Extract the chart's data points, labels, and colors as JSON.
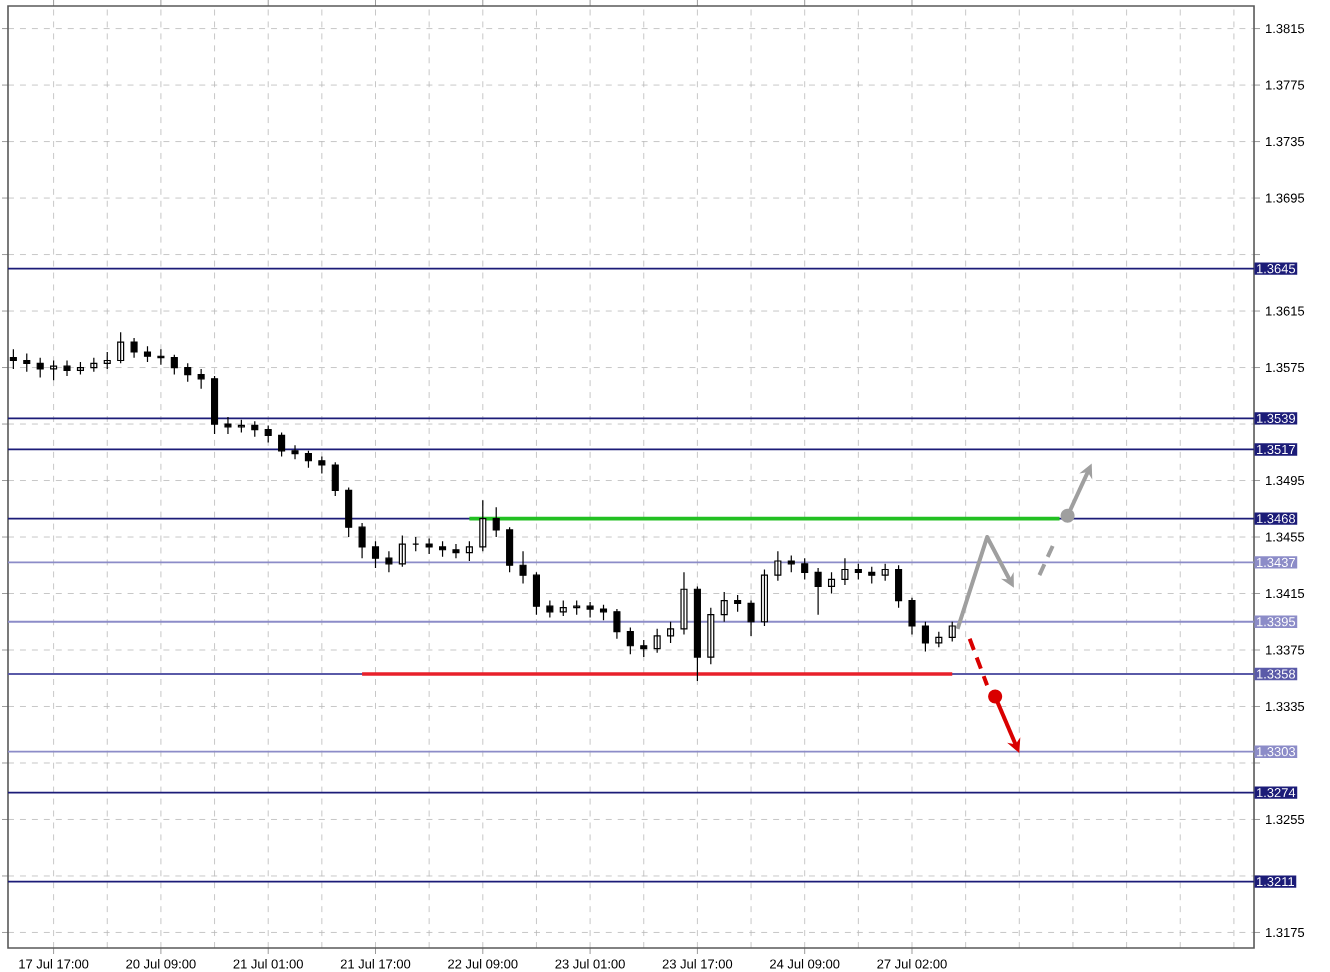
{
  "chart_data": {
    "type": "candlestick",
    "categories": [
      null,
      null,
      null,
      "17 Jul 17:00",
      null,
      null,
      null,
      null,
      null,
      null,
      null,
      "20 Jul 09:00",
      null,
      null,
      null,
      null,
      null,
      null,
      null,
      "21 Jul 01:00",
      null,
      null,
      null,
      null,
      null,
      null,
      null,
      "21 Jul 17:00",
      null,
      null,
      null,
      null,
      null,
      null,
      null,
      "22 Jul 09:00",
      null,
      null,
      null,
      null,
      null,
      null,
      null,
      "23 Jul 01:00",
      null,
      null,
      null,
      null,
      null,
      null,
      null,
      "23 Jul 17:00",
      null,
      null,
      null,
      null,
      null,
      null,
      null,
      "24 Jul 09:00",
      null,
      null,
      null,
      null,
      null,
      null,
      null,
      "27 Jul 02:00",
      null,
      null,
      null,
      null,
      null,
      null,
      null,
      null,
      null,
      null,
      null,
      null,
      null,
      null,
      null,
      null,
      null,
      null,
      null,
      null,
      null,
      null,
      null,
      null,
      null
    ],
    "ohlc": [
      [
        1.3582,
        1.3588,
        1.3574,
        1.358
      ],
      [
        1.358,
        1.3585,
        1.3572,
        1.3578
      ],
      [
        1.3578,
        1.3582,
        1.3568,
        1.3574
      ],
      [
        1.3574,
        1.358,
        1.3566,
        1.3576
      ],
      [
        1.3576,
        1.358,
        1.3569,
        1.3573
      ],
      [
        1.3573,
        1.3579,
        1.357,
        1.3575
      ],
      [
        1.3575,
        1.3582,
        1.3572,
        1.3578
      ],
      [
        1.3578,
        1.3586,
        1.3574,
        1.358
      ],
      [
        1.358,
        1.36,
        1.3578,
        1.3593
      ],
      [
        1.3593,
        1.3596,
        1.3582,
        1.3586
      ],
      [
        1.3586,
        1.359,
        1.3579,
        1.3583
      ],
      [
        1.3583,
        1.3588,
        1.3577,
        1.3582
      ],
      [
        1.3582,
        1.3584,
        1.357,
        1.3575
      ],
      [
        1.3575,
        1.3578,
        1.3565,
        1.357
      ],
      [
        1.357,
        1.3574,
        1.356,
        1.3567
      ],
      [
        1.3567,
        1.3569,
        1.3528,
        1.3535
      ],
      [
        1.3535,
        1.354,
        1.3528,
        1.3533
      ],
      [
        1.3533,
        1.3538,
        1.3529,
        1.3534
      ],
      [
        1.3534,
        1.3537,
        1.3526,
        1.3531
      ],
      [
        1.3531,
        1.3534,
        1.3522,
        1.3527
      ],
      [
        1.3527,
        1.3529,
        1.3512,
        1.3516
      ],
      [
        1.3516,
        1.352,
        1.351,
        1.3514
      ],
      [
        1.3514,
        1.3516,
        1.3504,
        1.3509
      ],
      [
        1.3509,
        1.3512,
        1.35,
        1.3506
      ],
      [
        1.3506,
        1.3508,
        1.3484,
        1.3488
      ],
      [
        1.3488,
        1.349,
        1.3455,
        1.3462
      ],
      [
        1.3462,
        1.3465,
        1.344,
        1.3448
      ],
      [
        1.3448,
        1.3452,
        1.3433,
        1.344
      ],
      [
        1.344,
        1.3445,
        1.343,
        1.3436
      ],
      [
        1.3436,
        1.3456,
        1.3434,
        1.345
      ],
      [
        1.345,
        1.3455,
        1.3445,
        1.345
      ],
      [
        1.345,
        1.3454,
        1.3443,
        1.3448
      ],
      [
        1.3448,
        1.3452,
        1.3441,
        1.3446
      ],
      [
        1.3446,
        1.345,
        1.344,
        1.3444
      ],
      [
        1.3444,
        1.3452,
        1.3438,
        1.3448
      ],
      [
        1.3448,
        1.3481,
        1.3445,
        1.3468
      ],
      [
        1.3468,
        1.3476,
        1.3455,
        1.346
      ],
      [
        1.346,
        1.3462,
        1.343,
        1.3435
      ],
      [
        1.3435,
        1.3445,
        1.3422,
        1.3428
      ],
      [
        1.3428,
        1.343,
        1.34,
        1.3406
      ],
      [
        1.3406,
        1.341,
        1.3398,
        1.3402
      ],
      [
        1.3402,
        1.341,
        1.3399,
        1.3405
      ],
      [
        1.3405,
        1.341,
        1.34,
        1.3406
      ],
      [
        1.3406,
        1.3409,
        1.3398,
        1.3404
      ],
      [
        1.3404,
        1.3407,
        1.3396,
        1.3402
      ],
      [
        1.3402,
        1.3404,
        1.3383,
        1.3388
      ],
      [
        1.3388,
        1.3391,
        1.3372,
        1.3378
      ],
      [
        1.3378,
        1.3382,
        1.337,
        1.3376
      ],
      [
        1.3376,
        1.339,
        1.3373,
        1.3385
      ],
      [
        1.3385,
        1.3395,
        1.338,
        1.339
      ],
      [
        1.339,
        1.343,
        1.3386,
        1.3418
      ],
      [
        1.3418,
        1.342,
        1.3353,
        1.337
      ],
      [
        1.337,
        1.3405,
        1.3365,
        1.34
      ],
      [
        1.34,
        1.3416,
        1.3395,
        1.341
      ],
      [
        1.341,
        1.3414,
        1.3402,
        1.3408
      ],
      [
        1.3408,
        1.341,
        1.3385,
        1.3395
      ],
      [
        1.3395,
        1.3432,
        1.3392,
        1.3428
      ],
      [
        1.3428,
        1.3445,
        1.3424,
        1.3438
      ],
      [
        1.3438,
        1.3442,
        1.343,
        1.3436
      ],
      [
        1.3436,
        1.344,
        1.3425,
        1.343
      ],
      [
        1.343,
        1.3433,
        1.34,
        1.342
      ],
      [
        1.342,
        1.343,
        1.3415,
        1.3425
      ],
      [
        1.3425,
        1.344,
        1.3421,
        1.3432
      ],
      [
        1.3432,
        1.3436,
        1.3425,
        1.343
      ],
      [
        1.343,
        1.3434,
        1.3422,
        1.3428
      ],
      [
        1.3428,
        1.3436,
        1.3424,
        1.3432
      ],
      [
        1.3432,
        1.3435,
        1.3405,
        1.341
      ],
      [
        1.341,
        1.3412,
        1.3386,
        1.3392
      ],
      [
        1.3392,
        1.3395,
        1.3374,
        1.338
      ],
      [
        1.338,
        1.3388,
        1.3377,
        1.3384
      ],
      [
        1.3384,
        1.3395,
        1.3381,
        1.3392
      ],
      null,
      null,
      null,
      null,
      null,
      null,
      null,
      null,
      null,
      null,
      null,
      null,
      null,
      null,
      null,
      null,
      null,
      null,
      null,
      null,
      null,
      null
    ],
    "series": [
      {
        "type": "line",
        "color": "#22c022",
        "values": [
          null,
          null,
          null,
          null,
          null,
          null,
          null,
          null,
          null,
          null,
          null,
          null,
          null,
          null,
          null,
          null,
          null,
          null,
          null,
          null,
          null,
          null,
          null,
          null,
          null,
          null,
          null,
          null,
          null,
          null,
          null,
          null,
          null,
          null,
          1.3468,
          1.3468,
          1.3468,
          1.3468,
          1.3468,
          1.3468,
          1.3468,
          1.3468,
          1.3468,
          1.3468,
          1.3468,
          1.3468,
          1.3468,
          1.3468,
          1.3468,
          1.3468,
          1.3468,
          1.3468,
          1.3468,
          1.3468,
          1.3468,
          1.3468,
          1.3468,
          1.3468,
          1.3468,
          1.3468,
          1.3468,
          1.3468,
          1.3468,
          1.3468,
          1.3468,
          1.3468,
          1.3468,
          1.3468,
          1.3468,
          1.3468,
          1.3468,
          1.3468,
          1.3468,
          1.3468,
          1.3468,
          1.3468,
          1.3468,
          1.3468,
          1.3468,
          null,
          null,
          null,
          null,
          null,
          null,
          null,
          null,
          null,
          null,
          null,
          null,
          null,
          null
        ]
      },
      {
        "type": "line",
        "color": "#e8202a",
        "values": [
          null,
          null,
          null,
          null,
          null,
          null,
          null,
          null,
          null,
          null,
          null,
          null,
          null,
          null,
          null,
          null,
          null,
          null,
          null,
          null,
          null,
          null,
          null,
          null,
          null,
          null,
          1.3358,
          1.3358,
          1.3358,
          1.3358,
          1.3358,
          1.3358,
          1.3358,
          1.3358,
          1.3358,
          1.3358,
          1.3358,
          1.3358,
          1.3358,
          1.3358,
          1.3358,
          1.3358,
          1.3358,
          1.3358,
          1.3358,
          1.3358,
          1.3358,
          1.3358,
          1.3358,
          1.3358,
          1.3358,
          1.3358,
          1.3358,
          1.3358,
          1.3358,
          1.3358,
          1.3358,
          1.3358,
          1.3358,
          1.3358,
          1.3358,
          1.3358,
          1.3358,
          1.3358,
          1.3358,
          1.3358,
          1.3358,
          1.3358,
          1.3358,
          1.3358,
          1.3358,
          null,
          null,
          null,
          null,
          null,
          null,
          null,
          null,
          null,
          null,
          null,
          null,
          null,
          null,
          null,
          null,
          null,
          null,
          null,
          null,
          null,
          null
        ]
      }
    ],
    "ylim": [
      1.3164,
      1.3831
    ],
    "yticks": [
      1.3815,
      1.3775,
      1.3735,
      1.3695,
      {
        "value": 1.3655,
        "label": null
      },
      1.3615,
      1.3575,
      {
        "value": 1.3535,
        "label": null
      },
      1.3495,
      1.3455,
      1.3415,
      1.3375,
      1.3335,
      {
        "value": 1.3295,
        "label": null
      },
      1.3255,
      {
        "value": 1.3215,
        "label": null
      },
      1.3175
    ],
    "ref_lines": [
      {
        "axis": "y",
        "value": 1.3645,
        "label": "1.3645",
        "color": "#1c1c78"
      },
      {
        "axis": "y",
        "value": 1.3539,
        "label": "1.3539",
        "color": "#1c1c78"
      },
      {
        "axis": "y",
        "value": 1.3517,
        "label": "1.3517",
        "color": "#1c1c78"
      },
      {
        "axis": "y",
        "value": 1.3468,
        "label": "1.3468",
        "color": "#1c1c78"
      },
      {
        "axis": "y",
        "value": 1.3437,
        "label": "1.3437",
        "color": "#8c8cc8"
      },
      {
        "axis": "y",
        "value": 1.3395,
        "label": "1.3395",
        "color": "#8c8cc8"
      },
      {
        "axis": "y",
        "value": 1.3358,
        "label": "1.3358",
        "color": "#5a5aa8"
      },
      {
        "axis": "y",
        "value": 1.3303,
        "label": "1.3303",
        "color": "#8c8cc8"
      },
      {
        "axis": "y",
        "value": 1.3274,
        "label": "1.3274",
        "color": "#1c1c78"
      },
      {
        "axis": "y",
        "value": 1.3211,
        "label": "1.3211",
        "color": "#1c1c78"
      }
    ],
    "grid": true
  }
}
